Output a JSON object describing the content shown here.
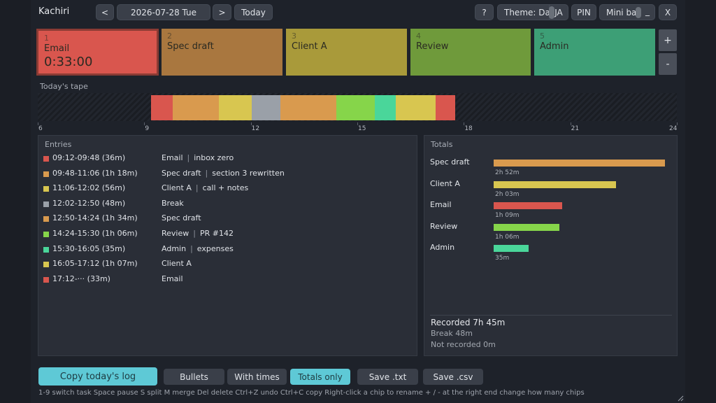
{
  "topbar": {
    "title": "Kachiri",
    "prev": "<",
    "date": "2026-07-28 Tue",
    "next": ">",
    "today": "Today",
    "help": "?",
    "theme": "Theme: Dark",
    "lang": "JA",
    "pin": "PIN",
    "minibar": "Mini bar",
    "minimize": "_",
    "close": "X"
  },
  "chips": [
    {
      "num": "1",
      "name": "Email",
      "timer": "0:33:00",
      "color": "#d9564e"
    },
    {
      "num": "2",
      "name": "Spec draft",
      "timer": "",
      "color": "#a9773f"
    },
    {
      "num": "3",
      "name": "Client A",
      "timer": "",
      "color": "#a99a3a"
    },
    {
      "num": "4",
      "name": "Review",
      "timer": "",
      "color": "#6f9a3b"
    },
    {
      "num": "5",
      "name": "Admin",
      "timer": "",
      "color": "#3d9f76"
    }
  ],
  "chip_add": "+",
  "chip_remove": "-",
  "tape": {
    "label": "Today's tape",
    "ticks": [
      "6",
      "9",
      "12",
      "15",
      "18",
      "21",
      "24"
    ],
    "segments": [
      {
        "start": "09:12",
        "end": "09:48",
        "color": "#d9564e"
      },
      {
        "start": "09:48",
        "end": "11:06",
        "color": "#d99a4e"
      },
      {
        "start": "11:06",
        "end": "12:02",
        "color": "#d8c650"
      },
      {
        "start": "12:02",
        "end": "12:50",
        "color": "#9aa0a8"
      },
      {
        "start": "12:50",
        "end": "14:24",
        "color": "#d99a4e"
      },
      {
        "start": "14:24",
        "end": "15:30",
        "color": "#86d54a"
      },
      {
        "start": "15:30",
        "end": "16:05",
        "color": "#4ad69a"
      },
      {
        "start": "16:05",
        "end": "17:12",
        "color": "#d8c650"
      },
      {
        "start": "17:12",
        "end": "17:45",
        "color": "#d9564e"
      }
    ]
  },
  "entries": {
    "title": "Entries",
    "rows": [
      {
        "time": "09:12-09:48 (36m)",
        "task": "Email",
        "note": "inbox zero",
        "color": "#d9564e"
      },
      {
        "time": "09:48-11:06 (1h 18m)",
        "task": "Spec draft",
        "note": "section 3 rewritten",
        "color": "#d99a4e"
      },
      {
        "time": "11:06-12:02 (56m)",
        "task": "Client A",
        "note": "call + notes",
        "color": "#d8c650"
      },
      {
        "time": "12:02-12:50 (48m)",
        "task": "Break",
        "note": "",
        "color": "#9aa0a8"
      },
      {
        "time": "12:50-14:24 (1h 34m)",
        "task": "Spec draft",
        "note": "",
        "color": "#d99a4e"
      },
      {
        "time": "14:24-15:30 (1h 06m)",
        "task": "Review",
        "note": "PR #142",
        "color": "#86d54a"
      },
      {
        "time": "15:30-16:05 (35m)",
        "task": "Admin",
        "note": "expenses",
        "color": "#4ad69a"
      },
      {
        "time": "16:05-17:12 (1h 07m)",
        "task": "Client A",
        "note": "",
        "color": "#d8c650"
      },
      {
        "time": "17:12-··· (33m)",
        "task": "Email",
        "note": "",
        "color": "#d9564e"
      }
    ]
  },
  "totals": {
    "title": "Totals",
    "rows": [
      {
        "name": "Spec draft",
        "duration": "2h 52m",
        "minutes": 172,
        "color": "#d99a4e"
      },
      {
        "name": "Client A",
        "duration": "2h 03m",
        "minutes": 123,
        "color": "#d8c650"
      },
      {
        "name": "Email",
        "duration": "1h 09m",
        "minutes": 69,
        "color": "#d9564e"
      },
      {
        "name": "Review",
        "duration": "1h 06m",
        "minutes": 66,
        "color": "#86d54a"
      },
      {
        "name": "Admin",
        "duration": "35m",
        "minutes": 35,
        "color": "#4ad69a"
      }
    ],
    "recorded": "Recorded  7h 45m",
    "break": "Break  48m",
    "not_recorded": "Not recorded  0m"
  },
  "actions": {
    "copy": "Copy today's log",
    "bullets": "Bullets",
    "with_times": "With times",
    "totals_only": "Totals only",
    "save_txt": "Save .txt",
    "save_csv": "Save .csv"
  },
  "hint": "1-9 switch task   Space pause   S split   M merge   Del delete   Ctrl+Z undo   Ctrl+C copy   Right-click a chip to rename   + / - at the right end change how many chips"
}
